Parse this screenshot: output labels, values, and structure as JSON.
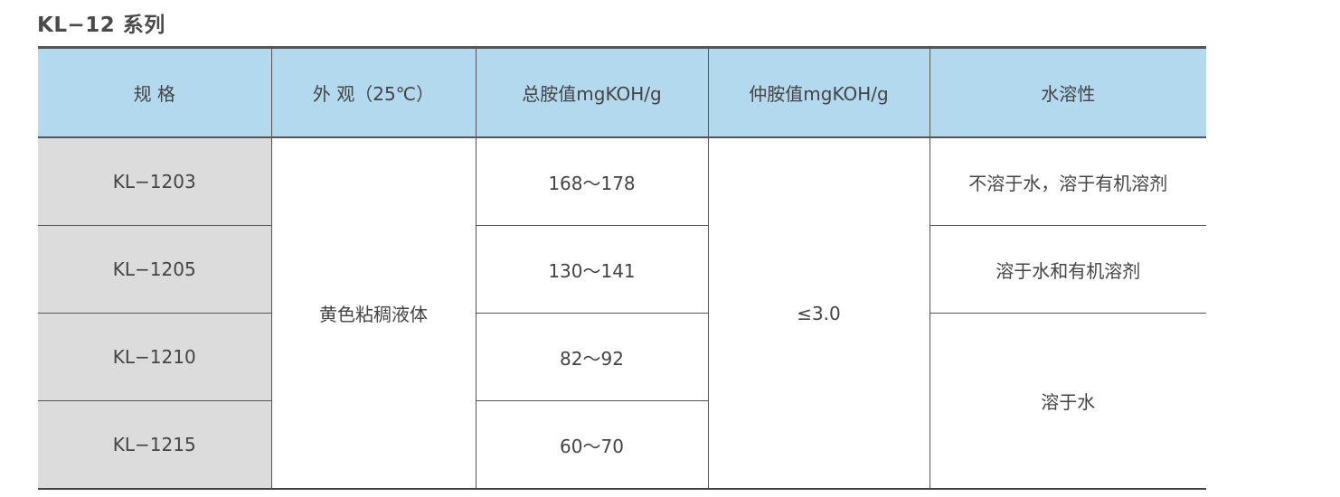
{
  "title": "KL−12 系列",
  "table": {
    "headers": [
      "规 格",
      "外 观（25℃）",
      "总胺值mgKOH/g",
      "仲胺值mgKOH/g",
      "水溶性"
    ],
    "rows": [
      {
        "spec": "KL−1203",
        "total_amine": "168～178"
      },
      {
        "spec": "KL−1205",
        "total_amine": "130～141"
      },
      {
        "spec": "KL−1210",
        "total_amine": "82～92"
      },
      {
        "spec": "KL−1215",
        "total_amine": "60～70"
      }
    ],
    "appearance": "黄色粘稠液体",
    "secondary_amine": "≤3.0",
    "solubility": [
      "不溶于水，溶于有机溶剂",
      "溶于水和有机溶剂",
      "溶于水"
    ]
  }
}
